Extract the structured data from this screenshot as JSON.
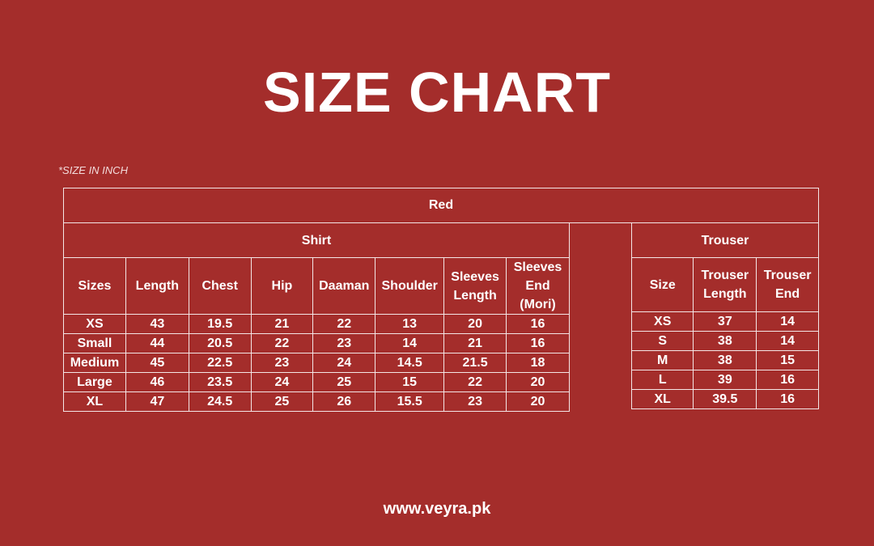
{
  "title": "SIZE CHART",
  "note": "*SIZE IN INCH",
  "group": "Red",
  "shirt": {
    "label": "Shirt",
    "headers": [
      "Sizes",
      "Length",
      "Chest",
      "Hip",
      "Daaman",
      "Shoulder",
      "Sleeves Length",
      "Sleeves End (Mori)"
    ],
    "rows": [
      [
        "XS",
        "43",
        "19.5",
        "21",
        "22",
        "13",
        "20",
        "16"
      ],
      [
        "Small",
        "44",
        "20.5",
        "22",
        "23",
        "14",
        "21",
        "16"
      ],
      [
        "Medium",
        "45",
        "22.5",
        "23",
        "24",
        "14.5",
        "21.5",
        "18"
      ],
      [
        "Large",
        "46",
        "23.5",
        "24",
        "25",
        "15",
        "22",
        "20"
      ],
      [
        "XL",
        "47",
        "24.5",
        "25",
        "26",
        "15.5",
        "23",
        "20"
      ]
    ]
  },
  "trouser": {
    "label": "Trouser",
    "headers": [
      "Size",
      "Trouser Length",
      "Trouser End"
    ],
    "rows": [
      [
        "XS",
        "37",
        "14"
      ],
      [
        "S",
        "38",
        "14"
      ],
      [
        "M",
        "38",
        "15"
      ],
      [
        "L",
        "39",
        "16"
      ],
      [
        "XL",
        "39.5",
        "16"
      ]
    ]
  },
  "footer": "www.veyra.pk",
  "colors": {
    "background": "#a42d2b",
    "text": "#ffffff"
  }
}
